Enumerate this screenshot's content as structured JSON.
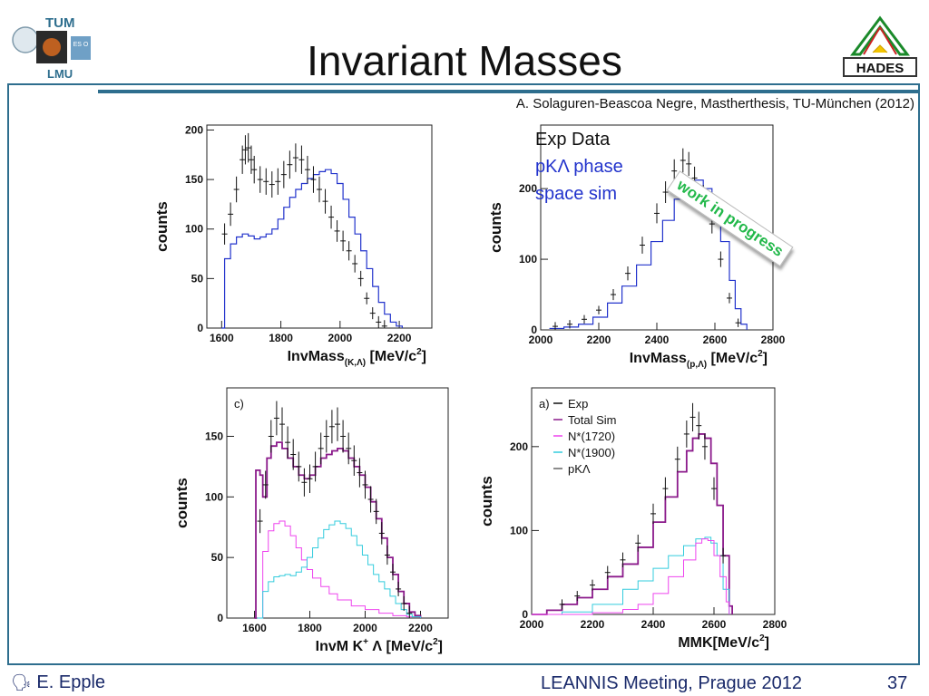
{
  "header": {
    "title": "Invariant Masses",
    "reference": "A. Solaguren-Beascoa Negre, Mastherthesis, TU-München (2012)",
    "logo_left_top": "TUM",
    "logo_left_bottom": "LMU",
    "logo_left_badge": "ES O",
    "logo_right": "HADES"
  },
  "stamp": {
    "text": "work in progress",
    "color": "#22b84a"
  },
  "footer": {
    "author": "E. Epple",
    "meeting": "LEANNIS Meeting, Prague 2012",
    "page": "37"
  },
  "colors": {
    "frame": "#2e6e8e",
    "sim_blue": "#2233cc",
    "total_purple": "#8b1a8b",
    "n1720_pink": "#ee44ee",
    "n1900_cyan": "#33ccdd",
    "exp_black": "#111111"
  },
  "chart_data": [
    {
      "type": "line",
      "panel": "top-left",
      "xlabel": "InvMass",
      "xlabel_sub": "(K,Λ)",
      "xunit": "[MeV/c",
      "ylabel": "counts",
      "xlim": [
        1550,
        2310
      ],
      "ylim": [
        0,
        205
      ],
      "xticks": [
        1600,
        1800,
        2000,
        2200
      ],
      "yticks": [
        0,
        50,
        100,
        150,
        200
      ],
      "series": [
        {
          "style": "sim",
          "x": [
            1600,
            1610,
            1630,
            1650,
            1670,
            1690,
            1710,
            1730,
            1750,
            1770,
            1790,
            1810,
            1830,
            1850,
            1870,
            1890,
            1910,
            1930,
            1950,
            1970,
            1990,
            2010,
            2030,
            2050,
            2070,
            2090,
            2110,
            2130,
            2150,
            2170,
            2190,
            2210
          ],
          "values": [
            0,
            70,
            85,
            92,
            95,
            93,
            90,
            92,
            95,
            100,
            110,
            122,
            132,
            140,
            146,
            151,
            155,
            158,
            160,
            156,
            146,
            130,
            112,
            95,
            78,
            60,
            42,
            26,
            14,
            6,
            2,
            0
          ]
        },
        {
          "style": "exp",
          "x": [
            1610,
            1630,
            1650,
            1670,
            1680,
            1690,
            1700,
            1710,
            1730,
            1750,
            1770,
            1790,
            1810,
            1830,
            1850,
            1870,
            1890,
            1910,
            1930,
            1950,
            1970,
            1990,
            2010,
            2030,
            2050,
            2070,
            2090,
            2110,
            2130,
            2150
          ],
          "values": [
            95,
            115,
            140,
            170,
            180,
            182,
            170,
            160,
            150,
            148,
            145,
            148,
            155,
            165,
            172,
            170,
            160,
            150,
            140,
            128,
            112,
            98,
            88,
            78,
            65,
            50,
            30,
            15,
            6,
            2
          ]
        }
      ]
    },
    {
      "type": "line",
      "panel": "top-right",
      "xlabel": "InvMass",
      "xlabel_sub": "(p,Λ)",
      "xunit": "[MeV/c",
      "ylabel": "counts",
      "xlim": [
        2000,
        2800
      ],
      "ylim": [
        0,
        290
      ],
      "xticks": [
        2000,
        2200,
        2400,
        2600,
        2800
      ],
      "yticks": [
        0,
        100,
        200
      ],
      "legend": [
        "Exp Data",
        "pKΛ phase",
        "space sim"
      ],
      "series": [
        {
          "style": "sim",
          "x": [
            2030,
            2080,
            2130,
            2180,
            2230,
            2280,
            2330,
            2380,
            2420,
            2460,
            2500,
            2530,
            2560,
            2590,
            2620,
            2650,
            2670,
            2690,
            2710
          ],
          "values": [
            2,
            4,
            8,
            18,
            38,
            62,
            92,
            125,
            155,
            185,
            208,
            212,
            200,
            170,
            125,
            70,
            30,
            8,
            0
          ]
        },
        {
          "style": "exp",
          "x": [
            2050,
            2100,
            2150,
            2200,
            2250,
            2300,
            2350,
            2400,
            2430,
            2460,
            2490,
            2510,
            2530,
            2560,
            2590,
            2620,
            2650,
            2680
          ],
          "values": [
            5,
            8,
            15,
            28,
            50,
            80,
            120,
            165,
            195,
            225,
            240,
            235,
            215,
            190,
            150,
            100,
            45,
            10
          ]
        }
      ]
    },
    {
      "type": "line",
      "panel": "bottom-left",
      "panel_label": "c)",
      "xlabel": "InvM K",
      "xlabel_sup": "+",
      "xlabel_rest": " Λ [MeV/c",
      "ylabel": "counts",
      "xlim": [
        1500,
        2300
      ],
      "ylim": [
        0,
        190
      ],
      "xticks": [
        1600,
        1800,
        2000,
        2200
      ],
      "yticks": [
        0,
        50,
        100,
        150
      ],
      "series": [
        {
          "style": "total",
          "x": [
            1600,
            1605,
            1620,
            1630,
            1645,
            1660,
            1680,
            1700,
            1720,
            1740,
            1760,
            1780,
            1800,
            1820,
            1840,
            1860,
            1880,
            1900,
            1920,
            1940,
            1960,
            1980,
            2000,
            2020,
            2040,
            2060,
            2080,
            2100,
            2120,
            2140,
            2160,
            2180,
            2200
          ],
          "values": [
            0,
            122,
            118,
            100,
            132,
            142,
            145,
            140,
            132,
            125,
            118,
            115,
            118,
            125,
            132,
            135,
            138,
            140,
            138,
            132,
            125,
            118,
            108,
            96,
            82,
            66,
            50,
            36,
            22,
            12,
            5,
            2,
            0
          ]
        },
        {
          "style": "n1720",
          "x": [
            1610,
            1630,
            1650,
            1670,
            1690,
            1710,
            1730,
            1750,
            1770,
            1790,
            1810,
            1840,
            1870,
            1900,
            1950,
            2000,
            2050,
            2100,
            2150,
            2200
          ],
          "values": [
            0,
            55,
            72,
            78,
            80,
            76,
            68,
            58,
            48,
            40,
            33,
            26,
            20,
            15,
            10,
            7,
            4,
            2,
            1,
            0
          ]
        },
        {
          "style": "n1900",
          "x": [
            1610,
            1630,
            1650,
            1670,
            1690,
            1710,
            1730,
            1750,
            1770,
            1790,
            1810,
            1830,
            1850,
            1870,
            1890,
            1910,
            1930,
            1950,
            1970,
            1990,
            2010,
            2030,
            2050,
            2070,
            2090,
            2110,
            2130,
            2150,
            2170,
            2200
          ],
          "values": [
            0,
            22,
            30,
            34,
            35,
            36,
            35,
            38,
            42,
            50,
            58,
            66,
            73,
            77,
            80,
            78,
            74,
            68,
            60,
            52,
            44,
            36,
            30,
            24,
            18,
            12,
            7,
            3,
            1,
            0
          ]
        },
        {
          "style": "exp",
          "x": [
            1620,
            1640,
            1660,
            1680,
            1700,
            1720,
            1740,
            1760,
            1780,
            1800,
            1820,
            1840,
            1860,
            1880,
            1900,
            1920,
            1940,
            1960,
            1980,
            2000,
            2020,
            2040,
            2060,
            2080,
            2100,
            2120,
            2140,
            2160
          ],
          "values": [
            80,
            110,
            150,
            165,
            160,
            145,
            135,
            125,
            112,
            115,
            125,
            140,
            150,
            158,
            160,
            150,
            140,
            130,
            120,
            110,
            98,
            88,
            70,
            52,
            38,
            24,
            12,
            4
          ]
        }
      ]
    },
    {
      "type": "line",
      "panel": "bottom-right",
      "panel_label": "a)",
      "xlabel": "MMK[MeV/c",
      "ylabel": "counts",
      "xlim": [
        2000,
        2800
      ],
      "ylim": [
        0,
        270
      ],
      "xticks": [
        2000,
        2200,
        2400,
        2600,
        2800
      ],
      "yticks": [
        0,
        100,
        200
      ],
      "legend": [
        "Exp",
        "Total Sim",
        "N*(1720)",
        "N*(1900)",
        "pKΛ"
      ],
      "series": [
        {
          "style": "total",
          "x": [
            2000,
            2050,
            2100,
            2150,
            2200,
            2250,
            2300,
            2350,
            2400,
            2440,
            2480,
            2510,
            2530,
            2550,
            2570,
            2590,
            2610,
            2630,
            2650,
            2660
          ],
          "values": [
            0,
            5,
            12,
            20,
            30,
            45,
            60,
            80,
            110,
            140,
            170,
            195,
            210,
            215,
            210,
            180,
            130,
            70,
            10,
            0
          ]
        },
        {
          "style": "n1900",
          "x": [
            2000,
            2100,
            2200,
            2300,
            2350,
            2400,
            2450,
            2500,
            2540,
            2570,
            2590,
            2610,
            2630,
            2650
          ],
          "values": [
            0,
            3,
            12,
            30,
            40,
            55,
            70,
            82,
            90,
            92,
            85,
            70,
            30,
            0
          ]
        },
        {
          "style": "n1720",
          "x": [
            2000,
            2200,
            2300,
            2350,
            2400,
            2450,
            2500,
            2540,
            2560,
            2580,
            2600,
            2620,
            2640,
            2650
          ],
          "values": [
            0,
            2,
            6,
            12,
            25,
            45,
            65,
            85,
            90,
            88,
            70,
            45,
            15,
            0
          ]
        },
        {
          "style": "exp",
          "x": [
            2100,
            2150,
            2200,
            2250,
            2300,
            2350,
            2400,
            2440,
            2480,
            2510,
            2530,
            2550,
            2570,
            2600,
            2630
          ],
          "values": [
            12,
            22,
            35,
            50,
            65,
            85,
            120,
            150,
            185,
            215,
            235,
            225,
            200,
            150,
            70
          ]
        }
      ]
    }
  ]
}
